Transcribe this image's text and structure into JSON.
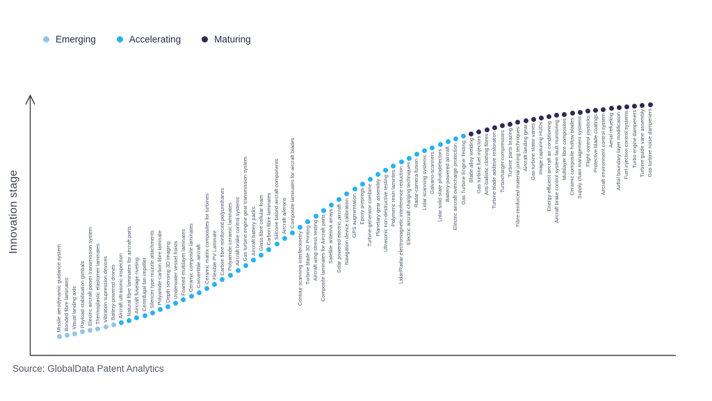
{
  "legend": [
    {
      "label": "Emerging",
      "color": "emerging"
    },
    {
      "label": "Accelerating",
      "color": "accelerating"
    },
    {
      "label": "Maturing",
      "color": "maturing"
    }
  ],
  "colors": {
    "emerging": "#93c6e3",
    "accelerating": "#27b2ee",
    "maturing": "#2f2a52"
  },
  "axis": {
    "y_title": "Innovation stage"
  },
  "source": "Source: GlobalData Patent Analytics",
  "chart_data": {
    "type": "scatter",
    "title": "",
    "xlabel": "",
    "ylabel": "Innovation stage",
    "legend_position": "top-left",
    "legend": [
      "Emerging",
      "Accelerating",
      "Maturing"
    ],
    "curve": "s-curve of innovation stage, points ordered left-to-right from Emerging to Maturing",
    "items": [
      {
        "name": "Missile aerodynamic guidance system",
        "stage": "Emerging"
      },
      {
        "name": "Bonded fibre laminates",
        "stage": "Emerging"
      },
      {
        "name": "Visual landing aids",
        "stage": "Emerging"
      },
      {
        "name": "Payload stabilisation gimbals",
        "stage": "Emerging"
      },
      {
        "name": "Electric aircraft power transmission system",
        "stage": "Emerging"
      },
      {
        "name": "Thermoplastic elastomer laminates",
        "stage": "Emerging"
      },
      {
        "name": "Vibration supression devices",
        "stage": "Emerging"
      },
      {
        "name": "Battery-powered drones",
        "stage": "Emerging"
      },
      {
        "name": "Aircraft ultrasonic inspection",
        "stage": "Accelerating"
      },
      {
        "name": "Natural fibre laminates for aircraft parts",
        "stage": "Accelerating"
      },
      {
        "name": "Aircraft fuselage riveting",
        "stage": "Accelerating"
      },
      {
        "name": "Centrifugal fan impeller",
        "stage": "Accelerating"
      },
      {
        "name": "Silencer type muzzle attachments",
        "stage": "Accelerating"
      },
      {
        "name": "Polyamide-carbon fibre laminate",
        "stage": "Accelerating"
      },
      {
        "name": "Depth sensing 3D imaging",
        "stage": "Accelerating"
      },
      {
        "name": "Underwater vessel hoists",
        "stage": "Accelerating"
      },
      {
        "name": "Foamed multilayer laminates",
        "stage": "Accelerating"
      },
      {
        "name": "Ceramic composite laminates",
        "stage": "Accelerating"
      },
      {
        "name": "Convertible aircraft",
        "stage": "Accelerating"
      },
      {
        "name": "Ceramic matrix composites for turbines",
        "stage": "Accelerating"
      },
      {
        "name": "Flexible PV Laminate",
        "stage": "Accelerating"
      },
      {
        "name": "Carbon fibre reinforced polyurethanes",
        "stage": "Accelerating"
      },
      {
        "name": "Polyamide-ceramic laminates",
        "stage": "Accelerating"
      },
      {
        "name": "Aircraft brake control systems",
        "stage": "Accelerating"
      },
      {
        "name": "Gas turbine engine gear transmission system",
        "stage": "Accelerating"
      },
      {
        "name": "Aircraft battery packs",
        "stage": "Accelerating"
      },
      {
        "name": "Glass fibre cellular foam",
        "stage": "Accelerating"
      },
      {
        "name": "Carbon fibre laminates",
        "stage": "Accelerating"
      },
      {
        "name": "Silicone based aircraft components",
        "stage": "Accelerating"
      },
      {
        "name": "Aircraft ailerons",
        "stage": "Accelerating"
      },
      {
        "name": "Composite laminates for aircraft blades",
        "stage": "Accelerating"
      },
      {
        "name": "Contour scanning interferometry",
        "stage": "Accelerating"
      },
      {
        "name": "Turbine blade 3D Printing",
        "stage": "Accelerating"
      },
      {
        "name": "Aircraft wing stress testing",
        "stage": "Accelerating"
      },
      {
        "name": "Composite laminates for Aircraft parts",
        "stage": "Accelerating"
      },
      {
        "name": "Satellite antenna arrays",
        "stage": "Accelerating"
      },
      {
        "name": "Solar powered electric aircraft",
        "stage": "Accelerating"
      },
      {
        "name": "Navigation device calibration",
        "stage": "Accelerating"
      },
      {
        "name": "GPS augmentation",
        "stage": "Accelerating"
      },
      {
        "name": "Epoxy prepregs",
        "stage": "Accelerating"
      },
      {
        "name": "Turbine-generator combine",
        "stage": "Accelerating"
      },
      {
        "name": "Planetary gear assembly",
        "stage": "Accelerating"
      },
      {
        "name": "Ultrasonic non-destructive testing",
        "stage": "Accelerating"
      },
      {
        "name": "Polymeric resin lamintes",
        "stage": "Accelerating"
      },
      {
        "name": "Lidar/Radar electromagnetic interference reduction",
        "stage": "Accelerating"
      },
      {
        "name": "Electric aircraft charging techniques",
        "stage": "Accelerating"
      },
      {
        "name": "Radar-camera fusion",
        "stage": "Accelerating"
      },
      {
        "name": "Lidar scanning systems",
        "stage": "Accelerating"
      },
      {
        "name": "Galvano-scanners",
        "stage": "Accelerating"
      },
      {
        "name": "Lidar solid state photodetectors",
        "stage": "Accelerating"
      },
      {
        "name": "Battery-powered aircraft",
        "stage": "Accelerating"
      },
      {
        "name": "Electric aircraft overcharge protection",
        "stage": "Accelerating"
      },
      {
        "name": "Gas Turbine Engine Testing",
        "stage": "Accelerating"
      },
      {
        "name": "Blade alloy welding",
        "stage": "Maturing"
      },
      {
        "name": "Gas turbine fuel injectors",
        "stage": "Maturing"
      },
      {
        "name": "Anti-ballistic clothing fibres",
        "stage": "Maturing"
      },
      {
        "name": "Turbine blade additive restoration",
        "stage": "Maturing"
      },
      {
        "name": "Turbocharger compressors",
        "stage": "Maturing"
      },
      {
        "name": "Turbine parts brazing",
        "stage": "Maturing"
      },
      {
        "name": "Fibre-reinforced material joining techniques",
        "stage": "Maturing"
      },
      {
        "name": "Aircraft landing gear",
        "stage": "Maturing"
      },
      {
        "name": "Gas turbine stator vanes",
        "stage": "Maturing"
      },
      {
        "name": "Image capturing HUDs",
        "stage": "Maturing"
      },
      {
        "name": "Energy-efficient aircraft air conditioning",
        "stage": "Maturing"
      },
      {
        "name": "Aircraft brake control system fault monitoring",
        "stage": "Maturing"
      },
      {
        "name": "Multilayer fibre composites",
        "stage": "Maturing"
      },
      {
        "name": "Ceramic composite hollow blades",
        "stage": "Maturing"
      },
      {
        "name": "Supply chain management systems",
        "stage": "Maturing"
      },
      {
        "name": "Flight control joysticks",
        "stage": "Maturing"
      },
      {
        "name": "Protective blade coatings",
        "stage": "Maturing"
      },
      {
        "name": "Aircraft environment control system",
        "stage": "Maturing"
      },
      {
        "name": "Aerial refueling",
        "stage": "Maturing"
      },
      {
        "name": "Airfoil boundary layer modification",
        "stage": "Maturing"
      },
      {
        "name": "Fuel injection control systems",
        "stage": "Maturing"
      },
      {
        "name": "Turbo engine dampeners",
        "stage": "Maturing"
      },
      {
        "name": "Turbine guide vane assembly",
        "stage": "Maturing"
      },
      {
        "name": "Gas turbine noise dampeners",
        "stage": "Maturing"
      }
    ]
  }
}
